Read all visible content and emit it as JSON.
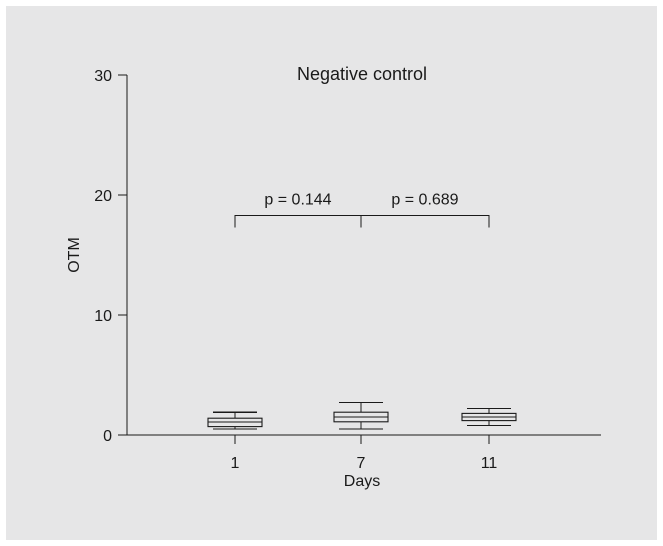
{
  "colors": {
    "background": "#e6e6e7",
    "ink": "#1a1a1a"
  },
  "chart_data": {
    "type": "box",
    "title": "Negative control",
    "xlabel": "Days",
    "ylabel": "OTM",
    "ylim": [
      0,
      30
    ],
    "yticks": [
      0,
      10,
      20,
      30
    ],
    "categories": [
      "1",
      "7",
      "11"
    ],
    "boxes": [
      {
        "category": "1",
        "min": 0.5,
        "q1": 0.7,
        "median": 1.1,
        "q3": 1.4,
        "max": 1.9
      },
      {
        "category": "7",
        "min": 0.5,
        "q1": 1.1,
        "median": 1.5,
        "q3": 1.9,
        "max": 2.7
      },
      {
        "category": "11",
        "min": 0.8,
        "q1": 1.2,
        "median": 1.5,
        "q3": 1.8,
        "max": 2.2
      }
    ],
    "annotations": [
      {
        "text": "p = 0.144",
        "from": "1",
        "to": "7",
        "level": 18.3
      },
      {
        "text": "p = 0.689",
        "from": "7",
        "to": "11",
        "level": 18.3
      }
    ],
    "grid": false,
    "legend": "none"
  }
}
